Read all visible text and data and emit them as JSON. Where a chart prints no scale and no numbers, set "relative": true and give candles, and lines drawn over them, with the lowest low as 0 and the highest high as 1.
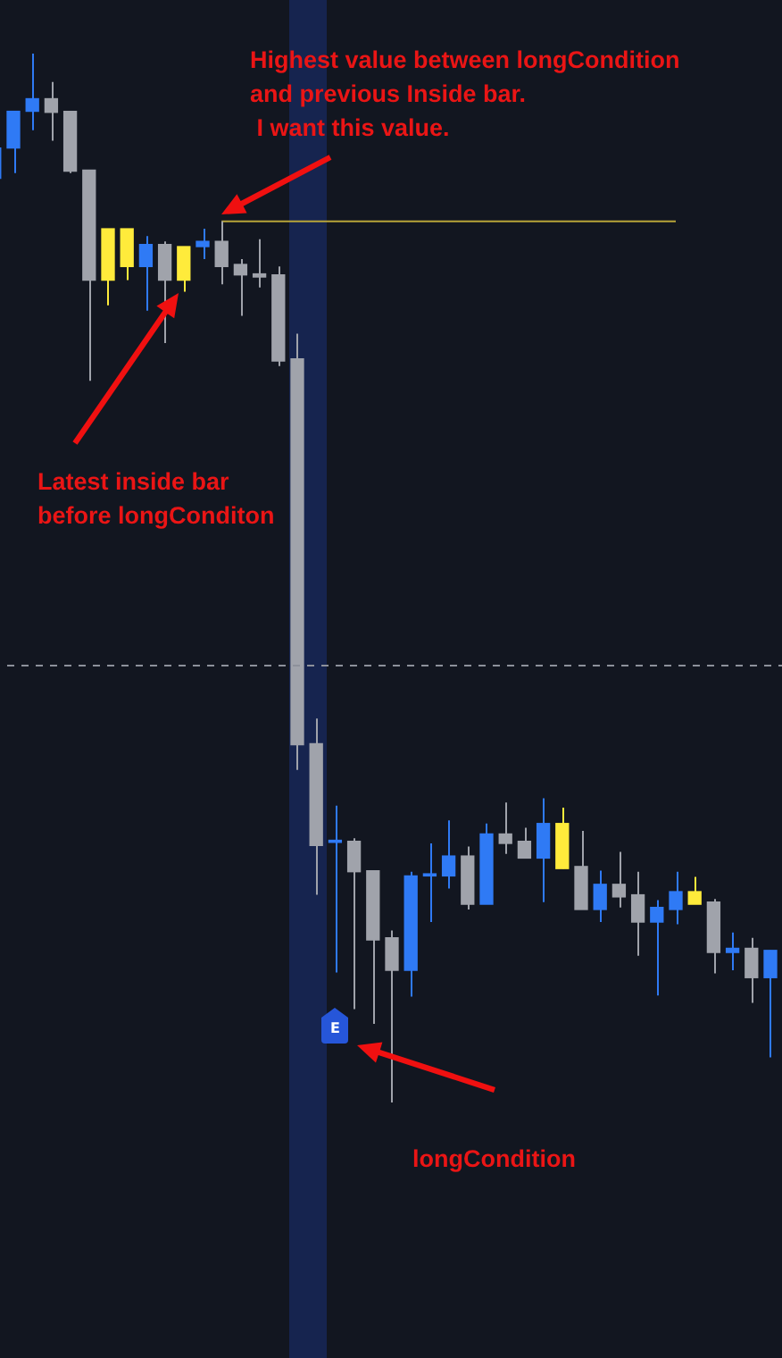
{
  "chart_data": {
    "type": "candlestick",
    "relative": true,
    "categories": [
      null,
      null,
      null,
      null,
      null,
      null,
      null,
      null,
      null,
      null,
      null,
      null,
      null,
      null,
      null,
      null,
      null,
      null,
      null,
      null,
      null,
      null,
      null,
      null,
      null,
      null,
      null,
      null,
      null,
      null,
      null,
      null,
      null,
      null,
      null,
      null,
      null,
      null,
      null,
      null,
      null,
      null
    ],
    "ohlc": [
      [
        0.881,
        0.91,
        0.881,
        0.91
      ],
      [
        0.91,
        0.945,
        0.886,
        0.945
      ],
      [
        0.945,
        1.0,
        0.927,
        0.957
      ],
      [
        0.957,
        0.973,
        0.917,
        0.944
      ],
      [
        0.945,
        0.945,
        0.886,
        0.888
      ],
      [
        0.889,
        0.889,
        0.688,
        0.784
      ],
      [
        0.784,
        0.833,
        0.76,
        0.833
      ],
      [
        0.833,
        0.833,
        0.784,
        0.797
      ],
      [
        0.797,
        0.826,
        0.755,
        0.818
      ],
      [
        0.818,
        0.821,
        0.724,
        0.784
      ],
      [
        0.784,
        0.816,
        0.773,
        0.816
      ],
      [
        0.816,
        0.833,
        0.804,
        0.821
      ],
      [
        0.821,
        0.84,
        0.78,
        0.797
      ],
      [
        0.799,
        0.804,
        0.75,
        0.789
      ],
      [
        0.79,
        0.823,
        0.777,
        0.787
      ],
      [
        0.789,
        0.797,
        0.702,
        0.707
      ],
      [
        0.709,
        0.733,
        0.317,
        0.341
      ],
      [
        0.342,
        0.366,
        0.198,
        0.245
      ],
      [
        0.248,
        0.283,
        0.124,
        0.25
      ],
      [
        0.249,
        0.252,
        0.089,
        0.22
      ],
      [
        0.221,
        0.221,
        0.075,
        0.155
      ],
      [
        0.157,
        0.164,
        0.0,
        0.126
      ],
      [
        0.126,
        0.22,
        0.101,
        0.216
      ],
      [
        0.216,
        0.247,
        0.172,
        0.218
      ],
      [
        0.216,
        0.269,
        0.204,
        0.235
      ],
      [
        0.235,
        0.244,
        0.184,
        0.189
      ],
      [
        0.189,
        0.266,
        0.189,
        0.256
      ],
      [
        0.256,
        0.286,
        0.237,
        0.247
      ],
      [
        0.249,
        0.262,
        0.233,
        0.233
      ],
      [
        0.233,
        0.29,
        0.191,
        0.266
      ],
      [
        0.266,
        0.281,
        0.223,
        0.223
      ],
      [
        0.225,
        0.259,
        0.184,
        0.184
      ],
      [
        0.184,
        0.221,
        0.172,
        0.208
      ],
      [
        0.208,
        0.239,
        0.186,
        0.196
      ],
      [
        0.198,
        0.22,
        0.14,
        0.172
      ],
      [
        0.172,
        0.193,
        0.102,
        0.186
      ],
      [
        0.184,
        0.22,
        0.17,
        0.201
      ],
      [
        0.201,
        0.215,
        0.189,
        0.189
      ],
      [
        0.191,
        0.194,
        0.123,
        0.143
      ],
      [
        0.143,
        0.162,
        0.126,
        0.147
      ],
      [
        0.147,
        0.157,
        0.095,
        0.119
      ],
      [
        0.119,
        0.145,
        0.043,
        0.145
      ]
    ],
    "colors": [
      "#2f7af5",
      "#2f7af5",
      "#2f7af5",
      "#a0a3ab",
      "#a0a3ab",
      "#a0a3ab",
      "#ffeb3b",
      "#ffeb3b",
      "#2f7af5",
      "#a0a3ab",
      "#ffeb3b",
      "#2f7af5",
      "#a0a3ab",
      "#a0a3ab",
      "#a0a3ab",
      "#a0a3ab",
      "#a0a3ab",
      "#a0a3ab",
      "#2f7af5",
      "#a0a3ab",
      "#a0a3ab",
      "#a0a3ab",
      "#2f7af5",
      "#2f7af5",
      "#2f7af5",
      "#a0a3ab",
      "#2f7af5",
      "#a0a3ab",
      "#a0a3ab",
      "#2f7af5",
      "#ffeb3b",
      "#a0a3ab",
      "#2f7af5",
      "#a0a3ab",
      "#a0a3ab",
      "#2f7af5",
      "#2f7af5",
      "#ffeb3b",
      "#a0a3ab",
      "#2f7af5",
      "#a0a3ab",
      "#2f7af5"
    ],
    "series": [
      {
        "type": "line",
        "color": "#b8a539",
        "values": [
          null,
          null,
          null,
          null,
          null,
          null,
          null,
          null,
          null,
          null,
          null,
          null,
          0.84,
          0.84,
          0.84,
          0.84,
          0.84,
          0.84,
          0.84,
          0.84,
          0.84,
          0.84,
          0.84,
          0.84,
          0.84,
          0.84,
          0.84,
          0.84,
          0.84,
          0.84,
          0.84,
          0.84,
          0.84,
          0.84,
          0.84,
          0.84,
          0.84,
          null,
          null,
          null,
          null,
          null
        ]
      }
    ],
    "ref_lines": [
      {
        "axis": "y",
        "value": 0.417,
        "color": "#8d919b",
        "line_style": "dashed"
      }
    ],
    "annotations": [
      "Highest value between longCondition\nand previous Inside bar.\n I want this value.",
      "Latest inside bar\nbefore longConditon",
      "longCondition",
      "E"
    ]
  }
}
